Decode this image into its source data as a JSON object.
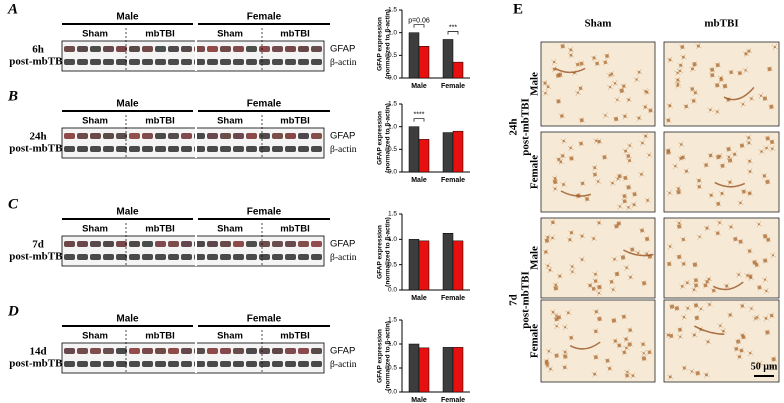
{
  "panels": [
    {
      "letter": "A",
      "timepoint": [
        "6h",
        "post-mbTBI"
      ],
      "groups": [
        "Male",
        "Female"
      ],
      "treatments": [
        "Sham",
        "mbTBI",
        "Sham",
        "mbTBI"
      ],
      "bands": [
        "GFAP",
        "β-actin"
      ]
    },
    {
      "letter": "B",
      "timepoint": [
        "24h",
        "post-mbTBI"
      ],
      "groups": [
        "Male",
        "Female"
      ],
      "treatments": [
        "Sham",
        "mbTBI",
        "Sham",
        "mbTBI"
      ],
      "bands": [
        "GFAP",
        "β-actin"
      ]
    },
    {
      "letter": "C",
      "timepoint": [
        "7d",
        "post-mbTBI"
      ],
      "groups": [
        "Male",
        "Female"
      ],
      "treatments": [
        "Sham",
        "mbTBI",
        "Sham",
        "mbTBI"
      ],
      "bands": [
        "GFAP",
        "β-actin"
      ]
    },
    {
      "letter": "D",
      "timepoint": [
        "14d",
        "post-mbTBI"
      ],
      "groups": [
        "Male",
        "Female"
      ],
      "treatments": [
        "Sham",
        "mbTBI",
        "Sham",
        "mbTBI"
      ],
      "bands": [
        "GFAP",
        "β-actin"
      ]
    }
  ],
  "chart_data": [
    {
      "type": "bar",
      "ylabel": [
        "GFAP expression",
        "(normalized to β-actin)"
      ],
      "categories": [
        "Male",
        "Female"
      ],
      "series": [
        {
          "color": "#3d3d3d",
          "values": [
            1.0,
            0.85
          ]
        },
        {
          "color": "#e8100f",
          "values": [
            0.7,
            0.35
          ]
        }
      ],
      "annotations": [
        "p=0.06",
        "***"
      ],
      "ylim": [
        0,
        1.5
      ],
      "yticks": [
        {
          "value": 0,
          "label": "0.0"
        },
        {
          "value": 0.5,
          "label": "0.5"
        },
        {
          "value": 1,
          "label": "1.0"
        },
        {
          "value": 1.5,
          "label": "1.5"
        }
      ]
    },
    {
      "type": "bar",
      "ylabel": [
        "GFAP expression",
        "(normalized to β-actin)"
      ],
      "categories": [
        "Male",
        "Female"
      ],
      "series": [
        {
          "color": "#3d3d3d",
          "values": [
            1.0,
            0.87
          ]
        },
        {
          "color": "#e8100f",
          "values": [
            0.72,
            0.9
          ]
        }
      ],
      "annotations": [
        "****",
        null
      ],
      "ylim": [
        0,
        1.5
      ],
      "yticks": [
        {
          "value": 0,
          "label": "0.0"
        },
        {
          "value": 0.5,
          "label": "0.5"
        },
        {
          "value": 1,
          "label": "1.0"
        },
        {
          "value": 1.5,
          "label": "1.5"
        }
      ]
    },
    {
      "type": "bar",
      "ylabel": [
        "GFAP expression",
        "(normalized to β-actin)"
      ],
      "categories": [
        "Male",
        "Female"
      ],
      "series": [
        {
          "color": "#3d3d3d",
          "values": [
            1.0,
            1.12
          ]
        },
        {
          "color": "#e8100f",
          "values": [
            0.97,
            0.97
          ]
        }
      ],
      "ylim": [
        0,
        1.5
      ],
      "yticks": [
        {
          "value": 0,
          "label": "0.0"
        },
        {
          "value": 0.5,
          "label": "0.5"
        },
        {
          "value": 1,
          "label": "1.0"
        },
        {
          "value": 1.5,
          "label": "1.5"
        }
      ]
    },
    {
      "type": "bar",
      "ylabel": [
        "GFAP expression",
        "(normalized to β-actin)"
      ],
      "categories": [
        "Male",
        "Female"
      ],
      "series": [
        {
          "color": "#3d3d3d",
          "values": [
            1.0,
            0.93
          ]
        },
        {
          "color": "#e8100f",
          "values": [
            0.92,
            0.93
          ]
        }
      ],
      "ylim": [
        0,
        1.5
      ],
      "yticks": [
        {
          "value": 0,
          "label": "0.0"
        },
        {
          "value": 0.5,
          "label": "0.5"
        },
        {
          "value": 1,
          "label": "1.0"
        },
        {
          "value": 1.5,
          "label": "1.5"
        }
      ]
    }
  ],
  "panel_e": {
    "letter": "E",
    "columns": [
      "Sham",
      "mbTBI"
    ],
    "blocks": [
      {
        "timepoint": [
          "24h",
          "post-mbTBI"
        ],
        "rows": [
          "Male",
          "Female"
        ]
      },
      {
        "timepoint": [
          "7d",
          "post-mbTBI"
        ],
        "rows": [
          "Male",
          "Female"
        ]
      }
    ],
    "scale_bar": "50 µm"
  }
}
